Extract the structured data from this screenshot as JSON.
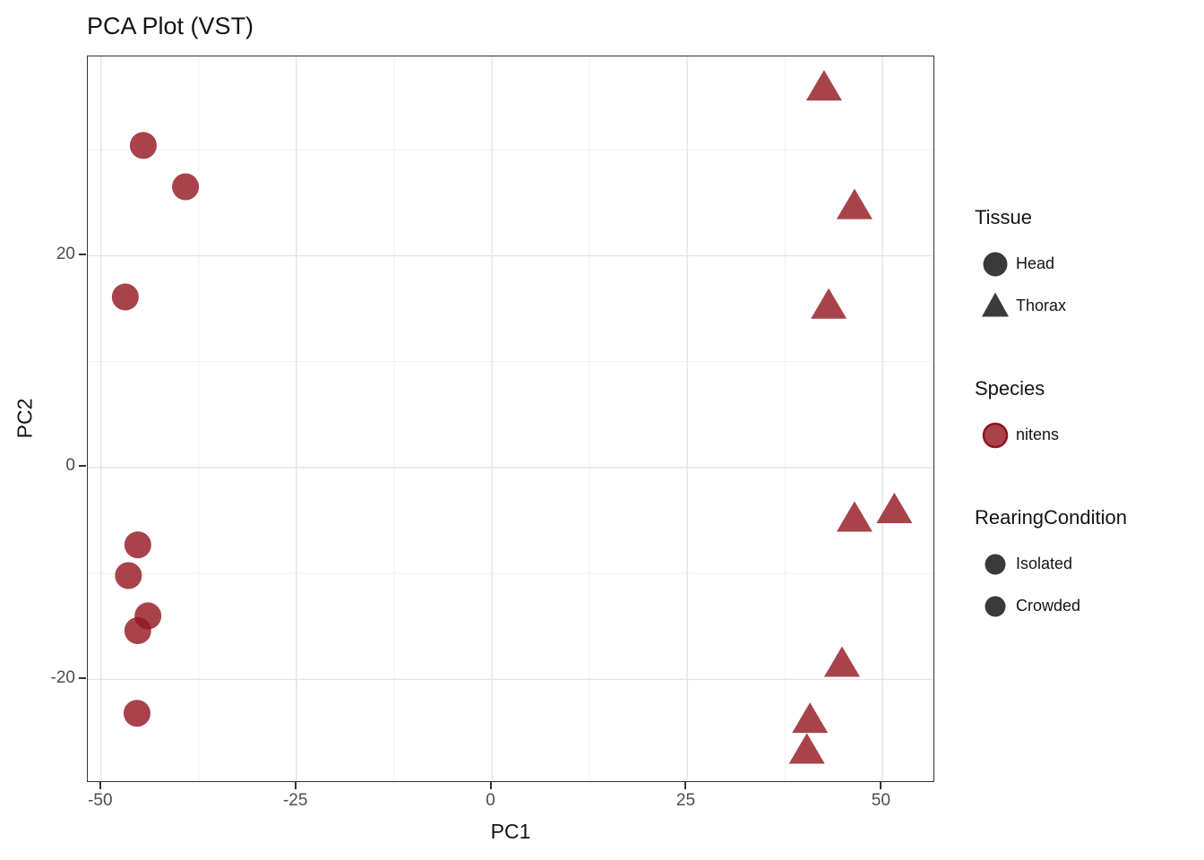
{
  "title": "PCA Plot (VST)",
  "colors": {
    "point_color": "#92141E",
    "point_opacity": 0.8,
    "legend_dark": "#3A3A3A",
    "axis_text": "#4D4D4D",
    "panel_border": "#333333",
    "grid_major": "#E4E4E4",
    "grid_minor": "#F1F1F1"
  },
  "chart_data": {
    "type": "scatter",
    "title": "PCA Plot (VST)",
    "xlabel": "PC1",
    "ylabel": "PC2",
    "xlim": [
      -51.7,
      56.5
    ],
    "ylim": [
      -29.6,
      38.8
    ],
    "x_ticks": [
      -50,
      -25,
      0,
      25,
      50
    ],
    "x_minor_ticks": [
      -37.5,
      -12.5,
      12.5,
      37.5
    ],
    "y_ticks": [
      -20,
      0,
      20
    ],
    "y_minor_ticks": [
      -30,
      -10,
      10,
      30
    ],
    "grid": true,
    "legend_position": "right",
    "point_color": "#92141E",
    "point_opacity": 0.8,
    "series": [
      {
        "name": "Head",
        "shape": "circle",
        "species": "nitens",
        "points": [
          [
            -44.6,
            30.4
          ],
          [
            -39.2,
            26.5
          ],
          [
            -46.9,
            16.1
          ],
          [
            -45.3,
            -7.3
          ],
          [
            -46.5,
            -10.2
          ],
          [
            -44.0,
            -14.0
          ],
          [
            -45.3,
            -15.4
          ],
          [
            -45.4,
            -23.2
          ]
        ]
      },
      {
        "name": "Thorax",
        "shape": "triangle",
        "species": "nitens",
        "points": [
          [
            42.5,
            36.0
          ],
          [
            46.4,
            24.8
          ],
          [
            43.1,
            15.4
          ],
          [
            46.4,
            -4.7
          ],
          [
            51.5,
            -3.9
          ],
          [
            44.8,
            -18.4
          ],
          [
            40.7,
            -23.7
          ],
          [
            40.3,
            -26.6
          ]
        ]
      }
    ]
  },
  "legend": {
    "groups": [
      {
        "title": "Tissue",
        "items": [
          {
            "label": "Head",
            "glyph": "circle",
            "color": "#3A3A3A",
            "opacity": 1,
            "ring": false,
            "size": 27
          },
          {
            "label": "Thorax",
            "glyph": "triangle",
            "color": "#3A3A3A",
            "opacity": 1,
            "ring": false,
            "size": 30
          }
        ]
      },
      {
        "title": "Species",
        "items": [
          {
            "label": "nitens",
            "glyph": "circle",
            "color": "#92141E",
            "opacity": 0.8,
            "ring": true,
            "size": 26
          }
        ]
      },
      {
        "title": "RearingCondition",
        "items": [
          {
            "label": "Isolated",
            "glyph": "circle",
            "color": "#3A3A3A",
            "opacity": 1,
            "ring": false,
            "size": 23
          },
          {
            "label": "Crowded",
            "glyph": "circle",
            "color": "#3A3A3A",
            "opacity": 1,
            "ring": false,
            "size": 23
          }
        ]
      }
    ]
  }
}
